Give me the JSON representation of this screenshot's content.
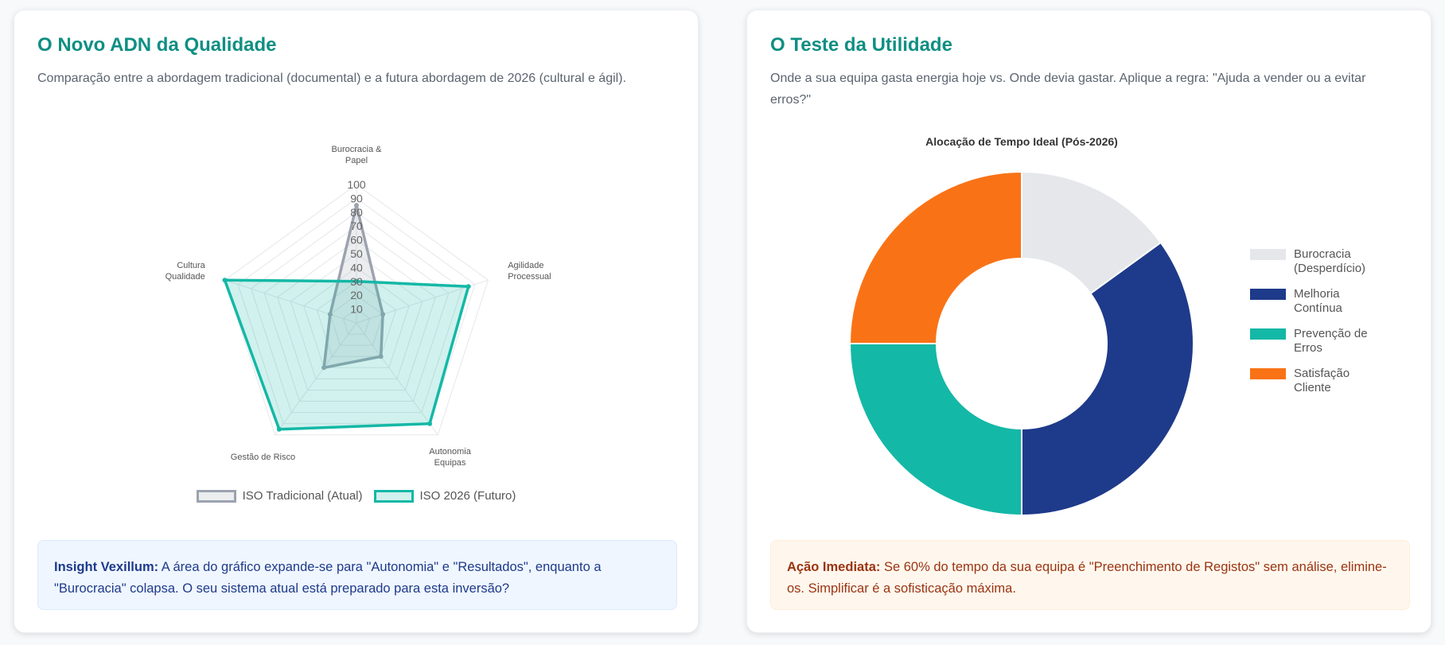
{
  "cards": [
    {
      "title": "O Novo ADN da Qualidade",
      "subtitle": "Comparação entre a abordagem tradicional (documental) e a futura abordagem de 2026 (cultural e ágil).",
      "chart_data": {
        "type": "radar",
        "axes": [
          [
            "Burocracia &",
            "Papel"
          ],
          [
            "Agilidade",
            "Processual"
          ],
          [
            "Autonomia",
            "Equipas"
          ],
          [
            "Gestão de Risco"
          ],
          [
            "Cultura",
            "Qualidade"
          ]
        ],
        "rlim": [
          0,
          100
        ],
        "rticks": [
          10,
          20,
          30,
          40,
          50,
          60,
          70,
          80,
          90,
          100
        ],
        "series": [
          {
            "name": "ISO Tradicional (Atual)",
            "color": "#9ca3af",
            "values": [
              85,
              20,
              30,
              40,
              20
            ]
          },
          {
            "name": "ISO 2026 (Futuro)",
            "color": "#14b8a6",
            "values": [
              30,
              85,
              90,
              95,
              100
            ]
          }
        ]
      },
      "note": {
        "label": "Insight Vexillum:",
        "text": "A área do gráfico expande-se para \"Autonomia\" e \"Resultados\", enquanto a \"Burocracia\" colapsa. O seu sistema atual está preparado para esta inversão?"
      }
    },
    {
      "title": "O Teste da Utilidade",
      "subtitle": "Onde a sua equipa gasta energia hoje vs. Onde devia gastar. Aplique a regra: \"Ajuda a vender ou a evitar erros?\"",
      "chart_data": {
        "type": "doughnut",
        "title": "Alocação de Tempo Ideal (Pós-2026)",
        "categories": [
          [
            "Burocracia",
            "(Desperdício)"
          ],
          [
            "Melhoria",
            "Contínua"
          ],
          [
            "Prevenção de",
            "Erros"
          ],
          [
            "Satisfação",
            "Cliente"
          ]
        ],
        "values": [
          15,
          35,
          25,
          25
        ],
        "colors": [
          "#e5e7eb",
          "#1e3a8a",
          "#14b8a6",
          "#f97316"
        ],
        "legend": "right"
      },
      "note": {
        "label": "Ação Imediata:",
        "text": "Se 60% do tempo da sua equipa é \"Preenchimento de Registos\" sem análise, elimine-os. Simplificar é a sofisticação máxima."
      }
    }
  ]
}
